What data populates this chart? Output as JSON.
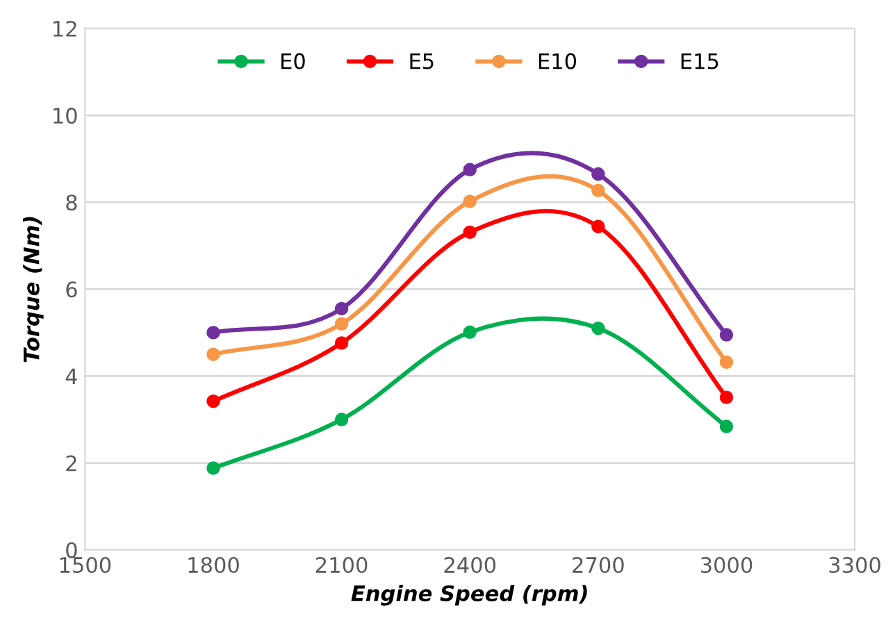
{
  "chart_data": {
    "type": "line",
    "xlabel": "Engine Speed (rpm)",
    "ylabel": "Torque (Nm)",
    "x": [
      1800,
      2100,
      2400,
      2700,
      3000
    ],
    "series": [
      {
        "name": "E0",
        "color": "#00b050",
        "values": [
          1.88,
          3.0,
          5.01,
          5.1,
          2.84
        ]
      },
      {
        "name": "E5",
        "color": "#ff0000",
        "values": [
          3.42,
          4.76,
          7.31,
          7.44,
          3.51
        ]
      },
      {
        "name": "E10",
        "color": "#f79646",
        "values": [
          4.5,
          5.2,
          8.02,
          8.27,
          4.32
        ]
      },
      {
        "name": "E15",
        "color": "#7030a0",
        "values": [
          5.0,
          5.55,
          8.75,
          8.65,
          4.95
        ]
      }
    ],
    "xlim": [
      1500,
      3300
    ],
    "xticks": [
      1500,
      1800,
      2100,
      2400,
      2700,
      3000,
      3300
    ],
    "ylim": [
      0,
      12
    ],
    "yticks": [
      0,
      2,
      4,
      6,
      8,
      10,
      12
    ],
    "grid": "y",
    "legend": "top",
    "marker": "circle",
    "line_style": "solid"
  }
}
